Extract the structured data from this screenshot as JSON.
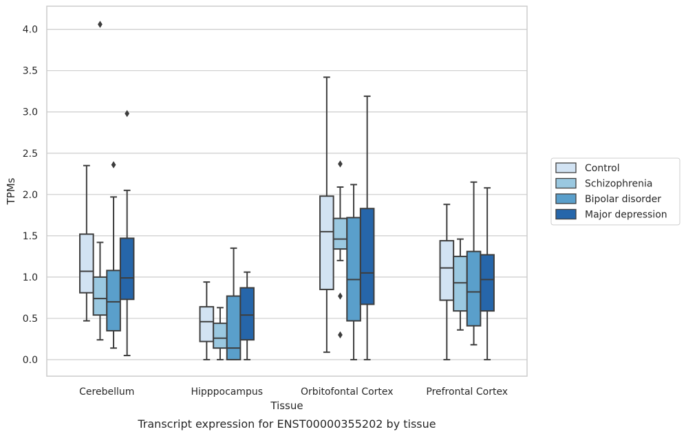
{
  "chart_data": {
    "type": "box",
    "caption": "Transcript expression for ENST00000355202 by tissue",
    "xlabel": "Tissue",
    "ylabel": "TPMs",
    "ylim": [
      -0.2,
      4.28
    ],
    "yticks": [
      0.0,
      0.5,
      1.0,
      1.5,
      2.0,
      2.5,
      3.0,
      3.5,
      4.0
    ],
    "ytick_labels": [
      "0.0",
      "0.5",
      "1.0",
      "1.5",
      "2.0",
      "2.5",
      "3.0",
      "3.5",
      "4.0"
    ],
    "grid": true,
    "legend_position": "right",
    "categories": [
      "Cerebellum",
      "Hipppocampus",
      "Orbitofontal Cortex",
      "Prefrontal Cortex"
    ],
    "series": [
      {
        "name": "Control",
        "color": "#d2e3f3",
        "boxes": [
          {
            "whisker_low": 0.47,
            "q1": 0.81,
            "median": 1.07,
            "q3": 1.52,
            "whisker_high": 2.35,
            "outliers": []
          },
          {
            "whisker_low": 0.0,
            "q1": 0.22,
            "median": 0.46,
            "q3": 0.64,
            "whisker_high": 0.94,
            "outliers": []
          },
          {
            "whisker_low": 0.09,
            "q1": 0.85,
            "median": 1.55,
            "q3": 1.98,
            "whisker_high": 3.42,
            "outliers": []
          },
          {
            "whisker_low": 0.0,
            "q1": 0.72,
            "median": 1.11,
            "q3": 1.44,
            "whisker_high": 1.88,
            "outliers": []
          }
        ]
      },
      {
        "name": "Schizophrenia",
        "color": "#9ac8e0",
        "boxes": [
          {
            "whisker_low": 0.24,
            "q1": 0.54,
            "median": 0.74,
            "q3": 1.0,
            "whisker_high": 1.42,
            "outliers": [
              4.06
            ]
          },
          {
            "whisker_low": 0.0,
            "q1": 0.14,
            "median": 0.26,
            "q3": 0.44,
            "whisker_high": 0.63,
            "outliers": []
          },
          {
            "whisker_low": 1.2,
            "q1": 1.34,
            "median": 1.46,
            "q3": 1.71,
            "whisker_high": 2.09,
            "outliers": [
              2.37,
              0.77,
              0.3
            ]
          },
          {
            "whisker_low": 0.36,
            "q1": 0.59,
            "median": 0.93,
            "q3": 1.25,
            "whisker_high": 1.46,
            "outliers": []
          }
        ]
      },
      {
        "name": "Bipolar disorder",
        "color": "#5a9fcb",
        "boxes": [
          {
            "whisker_low": 0.14,
            "q1": 0.35,
            "median": 0.7,
            "q3": 1.08,
            "whisker_high": 1.97,
            "outliers": [
              2.36
            ]
          },
          {
            "whisker_low": 0.0,
            "q1": 0.0,
            "median": 0.14,
            "q3": 0.77,
            "whisker_high": 1.35,
            "outliers": []
          },
          {
            "whisker_low": 0.0,
            "q1": 0.47,
            "median": 0.97,
            "q3": 1.72,
            "whisker_high": 2.12,
            "outliers": []
          },
          {
            "whisker_low": 0.18,
            "q1": 0.41,
            "median": 0.82,
            "q3": 1.31,
            "whisker_high": 2.15,
            "outliers": []
          }
        ]
      },
      {
        "name": "Major depression",
        "color": "#2666aa",
        "boxes": [
          {
            "whisker_low": 0.05,
            "q1": 0.73,
            "median": 0.99,
            "q3": 1.47,
            "whisker_high": 2.05,
            "outliers": [
              2.98
            ]
          },
          {
            "whisker_low": 0.0,
            "q1": 0.24,
            "median": 0.54,
            "q3": 0.87,
            "whisker_high": 1.06,
            "outliers": []
          },
          {
            "whisker_low": 0.0,
            "q1": 0.67,
            "median": 1.05,
            "q3": 1.83,
            "whisker_high": 3.19,
            "outliers": []
          },
          {
            "whisker_low": 0.0,
            "q1": 0.59,
            "median": 0.97,
            "q3": 1.27,
            "whisker_high": 2.08,
            "outliers": []
          }
        ]
      }
    ]
  }
}
